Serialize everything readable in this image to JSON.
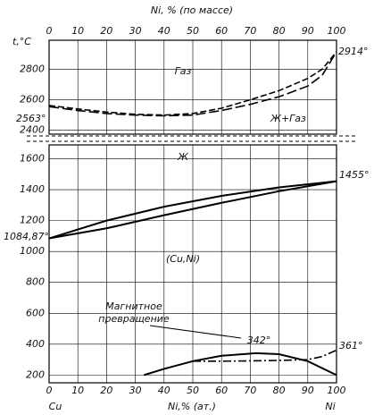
{
  "chart_data": [
    {
      "type": "line",
      "x2label": "Ni, % (по массе)",
      "x2lim": [
        0,
        100
      ],
      "x2ticks": [
        0,
        10,
        20,
        30,
        40,
        50,
        60,
        70,
        80,
        90,
        100
      ],
      "ylabel": "t,°C",
      "ylim": [
        2375,
        2990
      ],
      "yticks": [
        2400,
        2600,
        2800
      ],
      "xlim": [
        0,
        100
      ],
      "grid": true,
      "series": [
        {
          "color": "#000000",
          "dash": "7,3",
          "x": [
            0,
            10,
            20,
            30,
            40,
            50,
            60,
            70,
            80,
            90,
            95,
            100
          ],
          "values": [
            2563,
            2540,
            2520,
            2505,
            2500,
            2510,
            2545,
            2600,
            2660,
            2740,
            2800,
            2914
          ]
        },
        {
          "color": "#000000",
          "dash": "11,4",
          "x": [
            0,
            10,
            20,
            30,
            40,
            50,
            60,
            70,
            80,
            90,
            95,
            100
          ],
          "values": [
            2555,
            2530,
            2510,
            2500,
            2495,
            2500,
            2530,
            2570,
            2620,
            2690,
            2760,
            2914
          ]
        }
      ],
      "annotations": [
        "Газ",
        "Ж+Газ",
        "2914°",
        "2563°"
      ]
    },
    {
      "type": "line",
      "xlabel": "Ni,% (ат.)",
      "xlim": [
        0,
        100
      ],
      "xticks": [
        0,
        10,
        20,
        30,
        40,
        50,
        60,
        70,
        80,
        90,
        100
      ],
      "ylim": [
        150,
        1690
      ],
      "yticks": [
        200,
        400,
        600,
        800,
        1000,
        1200,
        1400,
        1600
      ],
      "grid": true,
      "series": [
        {
          "color": "#000000",
          "dash": "none",
          "x": [
            0,
            20,
            40,
            60,
            80,
            100
          ],
          "values": [
            1084.87,
            1200,
            1290,
            1360,
            1415,
            1455
          ]
        },
        {
          "color": "#000000",
          "dash": "none",
          "x": [
            0,
            20,
            40,
            60,
            80,
            100
          ],
          "values": [
            1084.87,
            1150,
            1235,
            1315,
            1390,
            1455
          ]
        },
        {
          "color": "#000000",
          "dash": "none",
          "x": [
            33,
            40,
            50,
            60,
            72,
            80,
            90,
            100
          ],
          "values": [
            200,
            240,
            290,
            325,
            342,
            335,
            290,
            200
          ]
        },
        {
          "color": "#000000",
          "dash": "9,3,2,3",
          "x": [
            50,
            60,
            70,
            80,
            90,
            95,
            100
          ],
          "values": [
            290,
            290,
            292,
            295,
            300,
            320,
            361
          ]
        }
      ],
      "annotations": [
        "Ж",
        "(Cu,Ni)",
        "1455°",
        "1084,87°",
        "Магнитное",
        "превращение",
        "342°",
        "361°",
        "Cu",
        "Ni"
      ]
    }
  ]
}
